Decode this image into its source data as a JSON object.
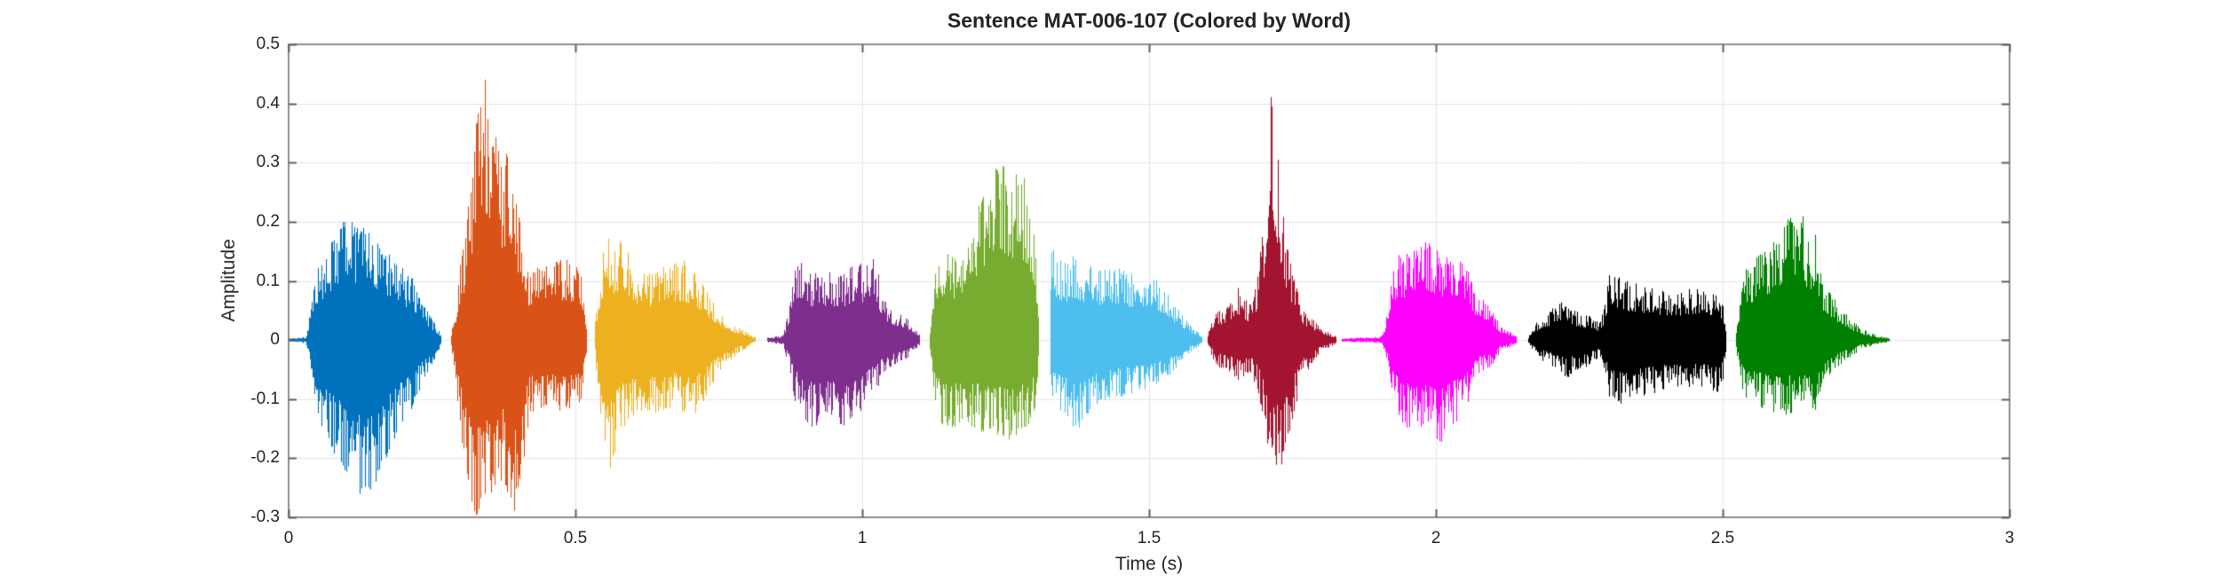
{
  "title": "Sentence MAT-006-107 (Colored by Word)",
  "x_axis": {
    "label": "Time (s)",
    "range": [
      0,
      3
    ],
    "tick_values": [
      0,
      0.5,
      1,
      1.5,
      2,
      2.5,
      3
    ],
    "tick_labels": [
      "0",
      "0.5",
      "1",
      "1.5",
      "2",
      "2.5",
      "3"
    ]
  },
  "y_axis": {
    "label": "Amplitude",
    "range": [
      -0.3,
      0.5
    ],
    "tick_values": [
      -0.3,
      -0.2,
      -0.1,
      0,
      0.1,
      0.2,
      0.3,
      0.4,
      0.5
    ],
    "tick_labels": [
      "-0.3",
      "-0.2",
      "-0.1",
      "0",
      "0.1",
      "0.2",
      "0.3",
      "0.4",
      "0.5"
    ]
  },
  "style": {
    "background": "#ffffff",
    "frame_color": "#8c8c8c",
    "grid_color": "#e4e4e4",
    "tick_color": "#5f5f5f",
    "text_color": "#262626"
  },
  "chart_data": {
    "type": "line",
    "subtype": "audio-waveform",
    "title": "Sentence MAT-006-107 (Colored by Word)",
    "xlabel": "Time (s)",
    "ylabel": "Amplitude",
    "xlim": [
      0,
      3
    ],
    "ylim": [
      -0.3,
      0.5
    ],
    "grid": true,
    "legend": false,
    "render_seed": 1337,
    "series": [
      {
        "name": "word-1",
        "color": "#0072BD",
        "t_start": 0.0,
        "t_end": 0.266,
        "peak_top": 0.21,
        "peak_bottom": -0.265,
        "envelope": [
          [
            0.0,
            0.003,
            -0.003
          ],
          [
            0.03,
            0.006,
            -0.006
          ],
          [
            0.038,
            0.06,
            -0.05
          ],
          [
            0.05,
            0.12,
            -0.13
          ],
          [
            0.07,
            0.16,
            -0.18
          ],
          [
            0.095,
            0.21,
            -0.22
          ],
          [
            0.115,
            0.2,
            -0.26
          ],
          [
            0.135,
            0.19,
            -0.265
          ],
          [
            0.155,
            0.17,
            -0.235
          ],
          [
            0.175,
            0.145,
            -0.19
          ],
          [
            0.195,
            0.125,
            -0.15
          ],
          [
            0.215,
            0.105,
            -0.115
          ],
          [
            0.235,
            0.06,
            -0.07
          ],
          [
            0.25,
            0.035,
            -0.04
          ],
          [
            0.266,
            0.008,
            -0.008
          ]
        ]
      },
      {
        "name": "word-2",
        "color": "#D95319",
        "t_start": 0.283,
        "t_end": 0.52,
        "peak_top": 0.46,
        "peak_bottom": -0.295,
        "envelope": [
          [
            0.283,
            0.01,
            -0.01
          ],
          [
            0.29,
            0.05,
            -0.06
          ],
          [
            0.298,
            0.13,
            -0.15
          ],
          [
            0.308,
            0.18,
            -0.22
          ],
          [
            0.318,
            0.29,
            -0.28
          ],
          [
            0.328,
            0.38,
            -0.3
          ],
          [
            0.34,
            0.46,
            -0.27
          ],
          [
            0.35,
            0.41,
            -0.295
          ],
          [
            0.36,
            0.37,
            -0.26
          ],
          [
            0.372,
            0.29,
            -0.24
          ],
          [
            0.385,
            0.34,
            -0.27
          ],
          [
            0.395,
            0.26,
            -0.295
          ],
          [
            0.405,
            0.18,
            -0.25
          ],
          [
            0.413,
            0.13,
            -0.17
          ],
          [
            0.42,
            0.115,
            -0.125
          ],
          [
            0.44,
            0.13,
            -0.12
          ],
          [
            0.46,
            0.135,
            -0.115
          ],
          [
            0.48,
            0.14,
            -0.125
          ],
          [
            0.5,
            0.13,
            -0.12
          ],
          [
            0.512,
            0.11,
            -0.1
          ],
          [
            0.52,
            0.02,
            -0.02
          ]
        ]
      },
      {
        "name": "word-3",
        "color": "#EDB120",
        "t_start": 0.534,
        "t_end": 0.813,
        "peak_top": 0.19,
        "peak_bottom": -0.23,
        "envelope": [
          [
            0.534,
            0.03,
            -0.03
          ],
          [
            0.54,
            0.1,
            -0.12
          ],
          [
            0.548,
            0.16,
            -0.18
          ],
          [
            0.556,
            0.19,
            -0.23
          ],
          [
            0.565,
            0.15,
            -0.21
          ],
          [
            0.575,
            0.17,
            -0.16
          ],
          [
            0.59,
            0.155,
            -0.14
          ],
          [
            0.61,
            0.12,
            -0.13
          ],
          [
            0.63,
            0.115,
            -0.125
          ],
          [
            0.65,
            0.125,
            -0.12
          ],
          [
            0.67,
            0.13,
            -0.115
          ],
          [
            0.69,
            0.135,
            -0.125
          ],
          [
            0.705,
            0.12,
            -0.135
          ],
          [
            0.72,
            0.1,
            -0.11
          ],
          [
            0.735,
            0.07,
            -0.08
          ],
          [
            0.755,
            0.045,
            -0.05
          ],
          [
            0.775,
            0.025,
            -0.03
          ],
          [
            0.795,
            0.015,
            -0.015
          ],
          [
            0.813,
            0.005,
            -0.005
          ]
        ]
      },
      {
        "name": "word-4",
        "color": "#7E2F8E",
        "t_start": 0.833,
        "t_end": 1.1,
        "peak_top": 0.155,
        "peak_bottom": -0.155,
        "envelope": [
          [
            0.833,
            0.004,
            -0.004
          ],
          [
            0.862,
            0.008,
            -0.008
          ],
          [
            0.872,
            0.06,
            -0.05
          ],
          [
            0.88,
            0.13,
            -0.1
          ],
          [
            0.89,
            0.15,
            -0.12
          ],
          [
            0.902,
            0.12,
            -0.14
          ],
          [
            0.915,
            0.115,
            -0.15
          ],
          [
            0.93,
            0.11,
            -0.145
          ],
          [
            0.945,
            0.12,
            -0.14
          ],
          [
            0.96,
            0.115,
            -0.15
          ],
          [
            0.975,
            0.12,
            -0.145
          ],
          [
            0.988,
            0.14,
            -0.13
          ],
          [
            1.0,
            0.13,
            -0.12
          ],
          [
            1.012,
            0.155,
            -0.1
          ],
          [
            1.022,
            0.145,
            -0.09
          ],
          [
            1.032,
            0.09,
            -0.07
          ],
          [
            1.042,
            0.06,
            -0.05
          ],
          [
            1.055,
            0.05,
            -0.045
          ],
          [
            1.07,
            0.045,
            -0.04
          ],
          [
            1.084,
            0.03,
            -0.025
          ],
          [
            1.1,
            0.008,
            -0.008
          ]
        ]
      },
      {
        "name": "word-5",
        "color": "#77AC30",
        "t_start": 1.117,
        "t_end": 1.308,
        "peak_top": 0.3,
        "peak_bottom": -0.17,
        "envelope": [
          [
            1.117,
            0.01,
            -0.01
          ],
          [
            1.123,
            0.1,
            -0.09
          ],
          [
            1.13,
            0.145,
            -0.13
          ],
          [
            1.145,
            0.15,
            -0.155
          ],
          [
            1.16,
            0.145,
            -0.15
          ],
          [
            1.175,
            0.155,
            -0.145
          ],
          [
            1.19,
            0.165,
            -0.15
          ],
          [
            1.205,
            0.24,
            -0.155
          ],
          [
            1.22,
            0.285,
            -0.16
          ],
          [
            1.24,
            0.3,
            -0.165
          ],
          [
            1.258,
            0.29,
            -0.17
          ],
          [
            1.275,
            0.285,
            -0.155
          ],
          [
            1.29,
            0.26,
            -0.145
          ],
          [
            1.3,
            0.17,
            -0.12
          ],
          [
            1.308,
            0.04,
            -0.04
          ]
        ]
      },
      {
        "name": "word-6",
        "color": "#4DBEEE",
        "t_start": 1.327,
        "t_end": 1.592,
        "peak_top": 0.17,
        "peak_bottom": -0.17,
        "envelope": [
          [
            1.327,
            0.165,
            -0.11
          ],
          [
            1.34,
            0.145,
            -0.12
          ],
          [
            1.355,
            0.135,
            -0.13
          ],
          [
            1.37,
            0.145,
            -0.155
          ],
          [
            1.385,
            0.13,
            -0.145
          ],
          [
            1.4,
            0.125,
            -0.115
          ],
          [
            1.42,
            0.12,
            -0.105
          ],
          [
            1.44,
            0.125,
            -0.1
          ],
          [
            1.46,
            0.115,
            -0.095
          ],
          [
            1.48,
            0.12,
            -0.09
          ],
          [
            1.5,
            0.115,
            -0.085
          ],
          [
            1.515,
            0.1,
            -0.075
          ],
          [
            1.53,
            0.085,
            -0.065
          ],
          [
            1.545,
            0.06,
            -0.05
          ],
          [
            1.56,
            0.04,
            -0.03
          ],
          [
            1.575,
            0.02,
            -0.018
          ],
          [
            1.592,
            0.008,
            -0.008
          ]
        ]
      },
      {
        "name": "word-7",
        "color": "#A2142F",
        "t_start": 1.602,
        "t_end": 1.826,
        "peak_top": 0.425,
        "peak_bottom": -0.24,
        "envelope": [
          [
            1.602,
            0.01,
            -0.01
          ],
          [
            1.612,
            0.04,
            -0.035
          ],
          [
            1.625,
            0.055,
            -0.05
          ],
          [
            1.64,
            0.065,
            -0.055
          ],
          [
            1.655,
            0.09,
            -0.07
          ],
          [
            1.665,
            0.075,
            -0.065
          ],
          [
            1.676,
            0.06,
            -0.055
          ],
          [
            1.688,
            0.1,
            -0.085
          ],
          [
            1.698,
            0.19,
            -0.13
          ],
          [
            1.706,
            0.33,
            -0.2
          ],
          [
            1.713,
            0.425,
            -0.24
          ],
          [
            1.72,
            0.37,
            -0.235
          ],
          [
            1.728,
            0.26,
            -0.22
          ],
          [
            1.738,
            0.175,
            -0.185
          ],
          [
            1.748,
            0.12,
            -0.14
          ],
          [
            1.758,
            0.085,
            -0.1
          ],
          [
            1.768,
            0.055,
            -0.065
          ],
          [
            1.78,
            0.04,
            -0.045
          ],
          [
            1.795,
            0.025,
            -0.025
          ],
          [
            1.81,
            0.015,
            -0.015
          ],
          [
            1.826,
            0.006,
            -0.006
          ]
        ]
      },
      {
        "name": "word-8",
        "color": "#FF00FF",
        "t_start": 1.835,
        "t_end": 2.14,
        "peak_top": 0.175,
        "peak_bottom": -0.175,
        "envelope": [
          [
            1.835,
            0.003,
            -0.003
          ],
          [
            1.905,
            0.006,
            -0.006
          ],
          [
            1.916,
            0.05,
            -0.04
          ],
          [
            1.924,
            0.12,
            -0.1
          ],
          [
            1.934,
            0.155,
            -0.125
          ],
          [
            1.945,
            0.145,
            -0.15
          ],
          [
            1.958,
            0.15,
            -0.155
          ],
          [
            1.97,
            0.165,
            -0.145
          ],
          [
            1.982,
            0.175,
            -0.155
          ],
          [
            1.995,
            0.16,
            -0.17
          ],
          [
            2.008,
            0.15,
            -0.175
          ],
          [
            2.022,
            0.155,
            -0.15
          ],
          [
            2.035,
            0.15,
            -0.14
          ],
          [
            2.048,
            0.14,
            -0.12
          ],
          [
            2.06,
            0.115,
            -0.1
          ],
          [
            2.07,
            0.07,
            -0.06
          ],
          [
            2.08,
            0.075,
            -0.055
          ],
          [
            2.09,
            0.06,
            -0.05
          ],
          [
            2.1,
            0.045,
            -0.04
          ],
          [
            2.112,
            0.025,
            -0.02
          ],
          [
            2.125,
            0.018,
            -0.015
          ],
          [
            2.14,
            0.005,
            -0.005
          ]
        ]
      },
      {
        "name": "word-9",
        "color": "#000000",
        "t_start": 2.16,
        "t_end": 2.505,
        "peak_top": 0.12,
        "peak_bottom": -0.11,
        "envelope": [
          [
            2.16,
            0.004,
            -0.004
          ],
          [
            2.17,
            0.025,
            -0.02
          ],
          [
            2.185,
            0.04,
            -0.035
          ],
          [
            2.2,
            0.05,
            -0.045
          ],
          [
            2.215,
            0.07,
            -0.055
          ],
          [
            2.228,
            0.055,
            -0.065
          ],
          [
            2.24,
            0.05,
            -0.055
          ],
          [
            2.255,
            0.045,
            -0.05
          ],
          [
            2.27,
            0.04,
            -0.04
          ],
          [
            2.283,
            0.03,
            -0.03
          ],
          [
            2.292,
            0.05,
            -0.045
          ],
          [
            2.3,
            0.115,
            -0.095
          ],
          [
            2.312,
            0.11,
            -0.105
          ],
          [
            2.325,
            0.105,
            -0.11
          ],
          [
            2.34,
            0.1,
            -0.105
          ],
          [
            2.355,
            0.095,
            -0.1
          ],
          [
            2.37,
            0.09,
            -0.095
          ],
          [
            2.385,
            0.085,
            -0.09
          ],
          [
            2.4,
            0.085,
            -0.085
          ],
          [
            2.415,
            0.08,
            -0.085
          ],
          [
            2.43,
            0.085,
            -0.08
          ],
          [
            2.445,
            0.09,
            -0.085
          ],
          [
            2.46,
            0.095,
            -0.08
          ],
          [
            2.475,
            0.09,
            -0.085
          ],
          [
            2.49,
            0.08,
            -0.09
          ],
          [
            2.5,
            0.06,
            -0.07
          ],
          [
            2.505,
            0.02,
            -0.02
          ]
        ]
      },
      {
        "name": "word-10",
        "color": "#008000",
        "t_start": 2.523,
        "t_end": 2.79,
        "peak_top": 0.227,
        "peak_bottom": -0.13,
        "envelope": [
          [
            2.523,
            0.01,
            -0.01
          ],
          [
            2.53,
            0.09,
            -0.08
          ],
          [
            2.54,
            0.12,
            -0.1
          ],
          [
            2.552,
            0.135,
            -0.11
          ],
          [
            2.565,
            0.145,
            -0.115
          ],
          [
            2.578,
            0.16,
            -0.12
          ],
          [
            2.59,
            0.18,
            -0.125
          ],
          [
            2.602,
            0.195,
            -0.13
          ],
          [
            2.615,
            0.21,
            -0.125
          ],
          [
            2.628,
            0.215,
            -0.12
          ],
          [
            2.636,
            0.227,
            -0.125
          ],
          [
            2.645,
            0.185,
            -0.115
          ],
          [
            2.652,
            0.175,
            -0.12
          ],
          [
            2.66,
            0.195,
            -0.13
          ],
          [
            2.668,
            0.12,
            -0.09
          ],
          [
            2.678,
            0.095,
            -0.07
          ],
          [
            2.69,
            0.075,
            -0.055
          ],
          [
            2.702,
            0.06,
            -0.045
          ],
          [
            2.715,
            0.045,
            -0.035
          ],
          [
            2.728,
            0.03,
            -0.025
          ],
          [
            2.742,
            0.02,
            -0.015
          ],
          [
            2.758,
            0.012,
            -0.01
          ],
          [
            2.775,
            0.006,
            -0.006
          ],
          [
            2.79,
            0.003,
            -0.003
          ]
        ]
      }
    ]
  }
}
